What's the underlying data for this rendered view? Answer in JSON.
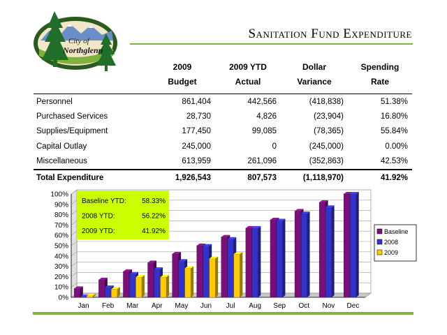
{
  "logo": {
    "text_line1": "City of",
    "text_line2": "Northglenn"
  },
  "title": "Sanitation Fund Expenditure",
  "table": {
    "headers": [
      {
        "line1": "",
        "line2": ""
      },
      {
        "line1": "2009",
        "line2": "Budget"
      },
      {
        "line1": "2009 YTD",
        "line2": "Actual"
      },
      {
        "line1": "Dollar",
        "line2": "Variance"
      },
      {
        "line1": "Spending",
        "line2": "Rate"
      }
    ],
    "rows": [
      {
        "label": "Personnel",
        "budget": "861,404",
        "actual": "442,566",
        "variance": "(418,838)",
        "rate": "51.38%"
      },
      {
        "label": "Purchased Services",
        "budget": "28,730",
        "actual": "4,826",
        "variance": "(23,904)",
        "rate": "16.80%"
      },
      {
        "label": "Supplies/Equipment",
        "budget": "177,450",
        "actual": "99,085",
        "variance": "(78,365)",
        "rate": "55.84%"
      },
      {
        "label": "Capital Outlay",
        "budget": "245,000",
        "actual": "0",
        "variance": "(245,000)",
        "rate": "0.00%"
      },
      {
        "label": "Miscellaneous",
        "budget": "613,959",
        "actual": "261,096",
        "variance": "(352,863)",
        "rate": "42.53%"
      }
    ],
    "total": {
      "label": "Total Expenditure",
      "budget": "1,926,543",
      "actual": "807,573",
      "variance": "(1,118,970)",
      "rate": "41.92%"
    }
  },
  "chart_data": {
    "type": "bar",
    "categories": [
      "Jan",
      "Feb",
      "Mar",
      "Apr",
      "May",
      "Jun",
      "Jul",
      "Aug",
      "Sep",
      "Oct",
      "Nov",
      "Dec"
    ],
    "series": [
      {
        "name": "Baseline",
        "color": "#7a0f7a",
        "values": [
          8.5,
          17,
          25,
          33.5,
          42,
          50,
          58.33,
          67,
          75,
          83.5,
          92,
          100
        ]
      },
      {
        "name": "2008",
        "color": "#3333cc",
        "values": [
          0.5,
          9.5,
          22.5,
          27,
          35,
          49.5,
          56.22,
          67,
          74,
          81,
          87,
          100
        ]
      },
      {
        "name": "2009",
        "color": "#ffcc00",
        "values": [
          1.5,
          8,
          19.5,
          19.5,
          28,
          37.5,
          41.92,
          null,
          null,
          null,
          null,
          null
        ]
      }
    ],
    "yticks": [
      "0%",
      "10%",
      "20%",
      "30%",
      "40%",
      "50%",
      "60%",
      "70%",
      "80%",
      "90%",
      "100%"
    ],
    "ylim": [
      0,
      100
    ],
    "legend_position": "right",
    "annotation": {
      "bg_color": "#ccff00",
      "lines": [
        {
          "label": "Baseline YTD:",
          "value": "58.33%"
        },
        {
          "label": "2008 YTD:",
          "value": "56.22%"
        },
        {
          "label": "2009 YTD:",
          "value": "41.92%"
        }
      ]
    }
  }
}
